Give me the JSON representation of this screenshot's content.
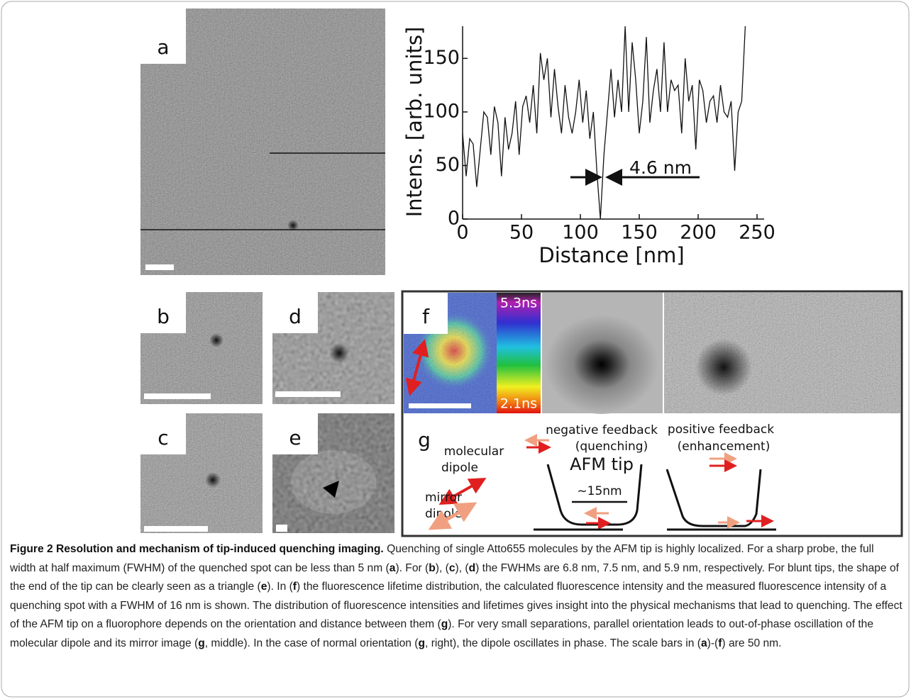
{
  "panels": {
    "a": "a",
    "b": "b",
    "c": "c",
    "d": "d",
    "e": "e",
    "f": "f"
  },
  "chart_data": {
    "type": "line",
    "xlabel": "Distance [nm]",
    "ylabel": "Intens. [arb. units]",
    "annotation": "4.6 nm",
    "color": "#111111",
    "x": [
      0,
      3,
      6,
      9,
      12,
      15,
      18,
      21,
      24,
      27,
      30,
      33,
      36,
      39,
      42,
      45,
      48,
      51,
      54,
      57,
      60,
      63,
      66,
      69,
      72,
      75,
      78,
      81,
      84,
      87,
      90,
      93,
      96,
      99,
      102,
      105,
      108,
      111,
      114,
      117,
      120,
      123,
      126,
      129,
      132,
      135,
      138,
      141,
      144,
      147,
      150,
      153,
      156,
      159,
      162,
      165,
      168,
      171,
      174,
      177,
      180,
      183,
      186,
      189,
      192,
      195,
      198,
      201,
      204,
      207,
      210,
      213,
      216,
      219,
      222,
      225,
      228,
      231,
      234,
      237,
      240
    ],
    "values": [
      80,
      40,
      75,
      70,
      30,
      65,
      100,
      95,
      60,
      105,
      90,
      40,
      95,
      65,
      80,
      110,
      60,
      105,
      115,
      90,
      125,
      80,
      155,
      130,
      150,
      95,
      140,
      105,
      80,
      125,
      95,
      80,
      100,
      130,
      90,
      120,
      75,
      100,
      45,
      0,
      60,
      100,
      140,
      95,
      130,
      100,
      180,
      100,
      165,
      130,
      80,
      110,
      170,
      90,
      120,
      140,
      100,
      165,
      100,
      130,
      120,
      125,
      80,
      150,
      110,
      125,
      65,
      130,
      120,
      90,
      110,
      115,
      90,
      125,
      100,
      95,
      110,
      45,
      100,
      110,
      180
    ],
    "xlim": [
      0,
      250
    ],
    "ylim": [
      0,
      180
    ],
    "xticks": [
      0,
      50,
      100,
      150,
      200,
      250
    ],
    "yticks": [
      0,
      50,
      100,
      150
    ]
  },
  "f": {
    "colorbar_max": "5.3ns",
    "colorbar_min": "2.1ns"
  },
  "g": {
    "label": "g",
    "negative": "negative feedback",
    "negative_sub": "(quenching)",
    "positive": "positive feedback",
    "positive_sub": "(enhancement)",
    "molecular": "molecular",
    "molecular_dipole": "dipole",
    "mirror": "mirror",
    "mirror_dipole": "dipole",
    "tip": "AFM tip",
    "width": "~15nm"
  },
  "caption": {
    "title": "Figure 2 Resolution and mechanism of tip-induced quenching imaging.",
    "runs": [
      " Quenching of single Atto655 molecules by the AFM tip is highly localized. For a sharp probe, the full width at half maximum (FWHM) of the quenched spot can be less than 5 nm (",
      "a",
      "). For (",
      "b",
      "), (",
      "c",
      "), (",
      "d",
      ") the FWHMs are 6.8 nm, 7.5 nm, and 5.9 nm, respectively. For blunt tips, the shape of the end of the tip can be clearly seen as a triangle (",
      "e",
      "). In (",
      "f",
      ") the fluorescence lifetime distribution, the calculated fluorescence intensity and the measured fluorescence intensity of a quenching spot with a FWHM of 16 nm is shown. The distribution of fluorescence intensities and lifetimes gives insight into the physical mechanisms that lead to quenching. The effect of the AFM tip on a fluorophore depends on the orientation and distance between them (",
      "g",
      "). For very small separations, parallel orientation leads to out-of-phase oscillation of the molecular dipole and its mirror image (",
      "g",
      ", middle). In the case of normal orientation (",
      "g",
      ", right), the dipole oscillates in phase. The scale bars in (",
      "a",
      ")-(",
      "f",
      ") are 50 nm."
    ]
  }
}
